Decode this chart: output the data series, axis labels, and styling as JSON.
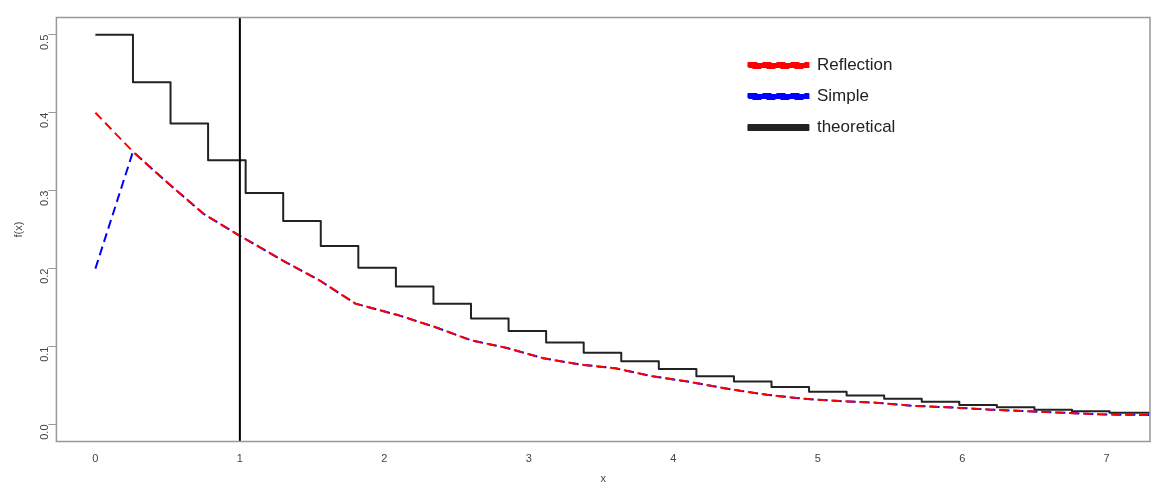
{
  "chart_data": {
    "type": "line",
    "xlabel": "x",
    "ylabel": "f(x)",
    "xlim": [
      -0.27,
      7.3
    ],
    "xticks": [
      0,
      1,
      2,
      3,
      4,
      5,
      6,
      7
    ],
    "ylim": [
      -0.022,
      0.522
    ],
    "yticks": [
      {
        "value": 0,
        "label": "0.0"
      },
      0.1,
      0.2,
      0.3,
      0.4,
      0.5
    ],
    "grid": false,
    "legend": "top right",
    "marker": "none",
    "ref_lines": [
      {
        "axis": "x",
        "value": 1,
        "color": "#000000",
        "line_style": "solid"
      }
    ],
    "series": [
      {
        "name": "Reflection",
        "type": "line",
        "color": "#ff0000",
        "line_style": "dashed",
        "x": [
          0,
          0.26,
          0.5,
          0.75,
          1.0,
          1.3,
          1.55,
          1.8,
          2.1,
          2.35,
          2.6,
          2.85,
          3.1,
          3.35,
          3.6,
          3.85,
          4.1,
          4.4,
          4.65,
          4.9,
          5.15,
          5.4,
          5.65,
          5.9,
          6.2,
          6.45,
          6.7,
          6.95,
          7.3
        ],
        "values": [
          0.4,
          0.35,
          0.31,
          0.27,
          0.242,
          0.21,
          0.185,
          0.155,
          0.14,
          0.125,
          0.108,
          0.098,
          0.085,
          0.077,
          0.072,
          0.062,
          0.055,
          0.045,
          0.038,
          0.033,
          0.03,
          0.028,
          0.024,
          0.022,
          0.019,
          0.017,
          0.015,
          0.013,
          0.012
        ]
      },
      {
        "name": "Simple",
        "type": "line",
        "color": "#0000ff",
        "line_style": "dashed",
        "x": [
          0,
          0.26,
          0.5,
          0.75,
          1.0,
          1.3,
          1.55,
          1.8,
          2.1,
          2.35,
          2.6,
          2.85,
          3.1,
          3.35,
          3.6,
          3.85,
          4.1,
          4.4,
          4.65,
          4.9,
          5.15,
          5.4,
          5.65,
          5.9,
          6.2,
          6.45,
          6.7,
          6.95,
          7.3
        ],
        "values": [
          0.2,
          0.35,
          0.31,
          0.27,
          0.242,
          0.21,
          0.185,
          0.155,
          0.14,
          0.125,
          0.108,
          0.098,
          0.085,
          0.077,
          0.072,
          0.062,
          0.055,
          0.045,
          0.038,
          0.033,
          0.03,
          0.028,
          0.024,
          0.022,
          0.019,
          0.017,
          0.015,
          0.013,
          0.012
        ]
      },
      {
        "name": "theoretical",
        "type": "step",
        "color": "#222222",
        "line_style": "solid",
        "x": [
          0,
          0.26,
          0.52,
          0.78,
          1.04,
          1.3,
          1.56,
          1.82,
          2.08,
          2.34,
          2.6,
          2.86,
          3.12,
          3.38,
          3.64,
          3.9,
          4.16,
          4.42,
          4.68,
          4.94,
          5.2,
          5.46,
          5.72,
          5.98,
          6.24,
          6.5,
          6.76,
          7.02,
          7.3
        ],
        "values": [
          0.5,
          0.439,
          0.386,
          0.339,
          0.297,
          0.261,
          0.229,
          0.201,
          0.177,
          0.155,
          0.136,
          0.12,
          0.105,
          0.092,
          0.081,
          0.071,
          0.062,
          0.055,
          0.048,
          0.042,
          0.037,
          0.033,
          0.029,
          0.025,
          0.022,
          0.019,
          0.017,
          0.015,
          0.015
        ]
      }
    ]
  }
}
